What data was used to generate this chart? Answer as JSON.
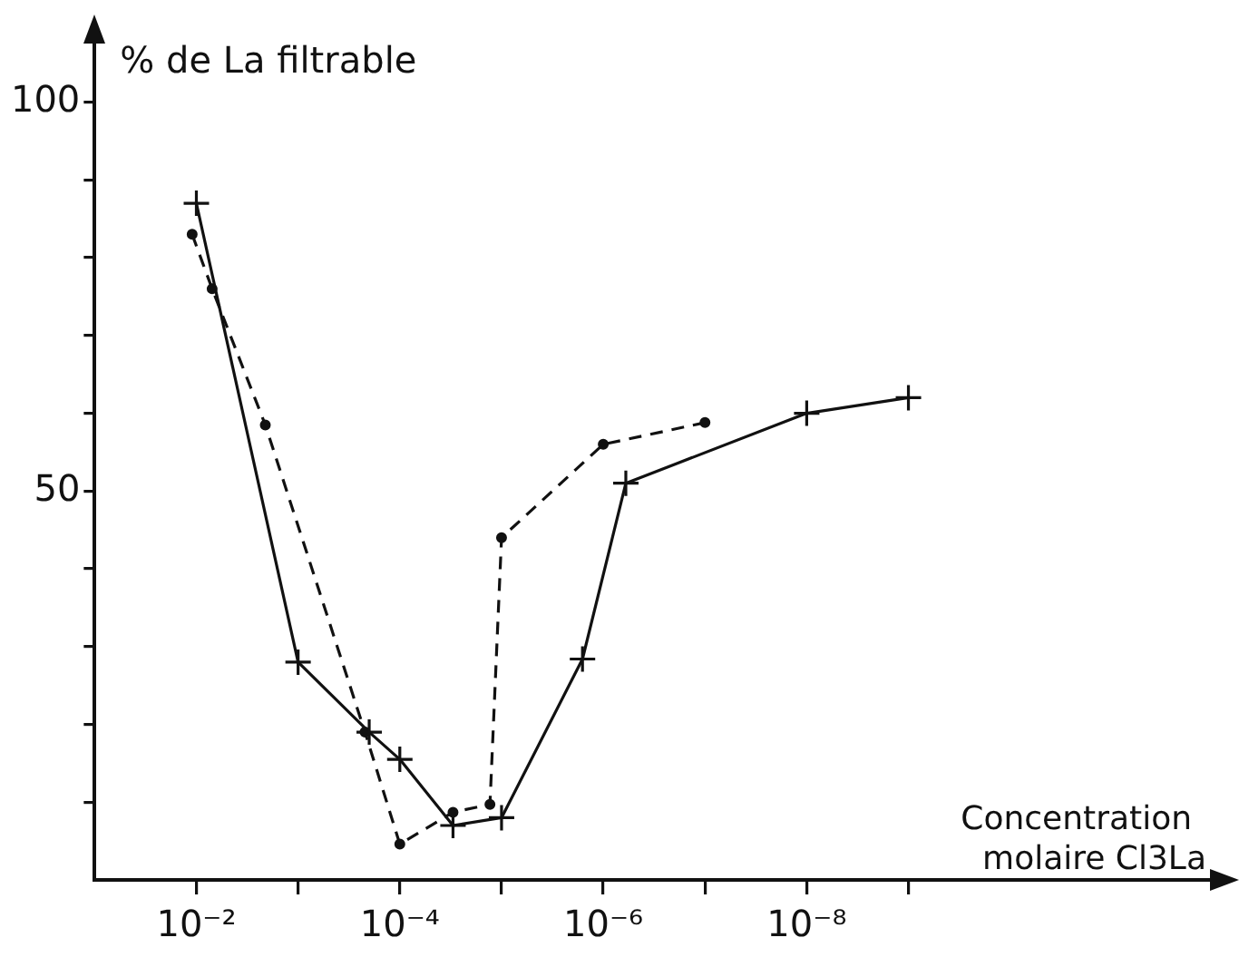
{
  "chart_data": {
    "type": "line",
    "xlabel": "Concentration molaire Cl3La",
    "ylabel": "% de La filtrable",
    "log": "x",
    "xlim": [
      0.1,
      1e-12
    ],
    "ylim": [
      0,
      108
    ],
    "xticks": [
      {
        "value": 0.01,
        "label": "10⁻²"
      },
      {
        "value": 0.001,
        "label": null
      },
      {
        "value": 0.0001,
        "label": "10⁻⁴"
      },
      {
        "value": 1e-05,
        "label": null
      },
      {
        "value": 1e-06,
        "label": "10⁻⁶"
      },
      {
        "value": 1e-07,
        "label": null
      },
      {
        "value": 1e-08,
        "label": "10⁻⁸"
      },
      {
        "value": 1e-09,
        "label": null
      }
    ],
    "yticks": [
      {
        "value": 10,
        "label": null
      },
      {
        "value": 20,
        "label": null
      },
      {
        "value": 30,
        "label": null
      },
      {
        "value": 40,
        "label": null
      },
      50,
      {
        "value": 60,
        "label": null
      },
      {
        "value": 70,
        "label": null
      },
      {
        "value": 80,
        "label": null
      },
      {
        "value": 90,
        "label": null
      },
      100
    ],
    "grid": false,
    "legend": false,
    "series": [
      {
        "color": "#111111",
        "marker": "cross",
        "line_style": "solid",
        "x": [
          0.01,
          0.001,
          0.0002,
          0.0001,
          3e-05,
          1e-05,
          1.6e-06,
          6e-07,
          1e-08,
          1e-09
        ],
        "values": [
          87,
          28,
          19,
          15.5,
          7,
          8,
          28.4,
          51,
          60,
          62
        ]
      },
      {
        "color": "#111111",
        "marker": "circle",
        "line_style": "dashed",
        "x": [
          0.011,
          0.007,
          0.0021,
          0.00022,
          0.0001,
          3e-05,
          1.3e-05,
          1e-05,
          1e-06,
          1e-07
        ],
        "values": [
          83,
          76,
          58.5,
          19,
          4.6,
          8.7,
          9.7,
          44,
          56,
          58.8
        ]
      }
    ]
  }
}
